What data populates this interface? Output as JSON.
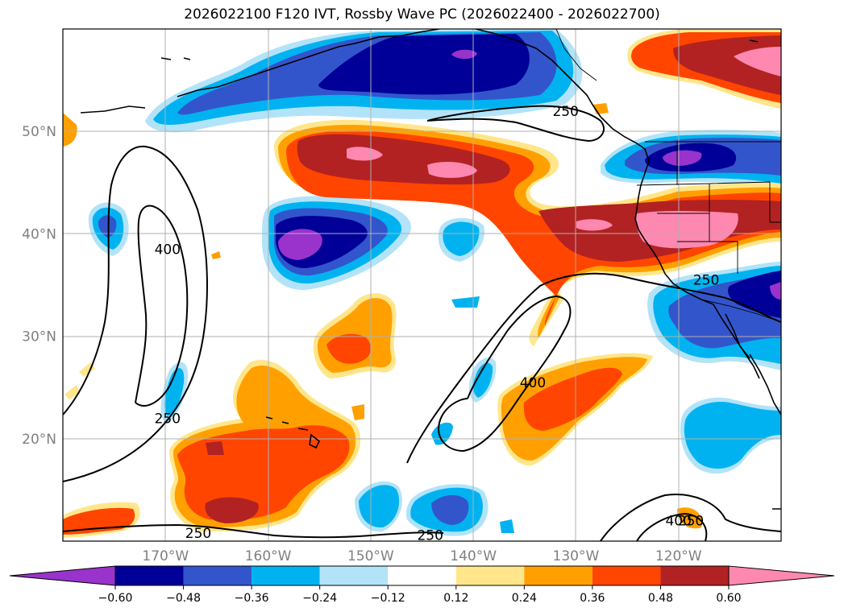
{
  "title": "2026022100 F120 IVT, Rossby Wave PC (2026022400 - 2026022700)",
  "map": {
    "projection": "cylindrical",
    "lon_range": [
      -180,
      -110
    ],
    "lat_range": [
      10,
      60
    ],
    "lon_ticks": [
      {
        "lon": -170,
        "label": "170°W"
      },
      {
        "lon": -160,
        "label": "160°W"
      },
      {
        "lon": -150,
        "label": "150°W"
      },
      {
        "lon": -140,
        "label": "140°W"
      },
      {
        "lon": -130,
        "label": "130°W"
      },
      {
        "lon": -120,
        "label": "120°W"
      }
    ],
    "lat_ticks": [
      {
        "lat": 20,
        "label": "20°N"
      },
      {
        "lat": 30,
        "label": "30°N"
      },
      {
        "lat": 40,
        "label": "40°N"
      },
      {
        "lat": 50,
        "label": "50°N"
      }
    ]
  },
  "contour_labels": [
    {
      "text": "250",
      "lon": -131.0,
      "lat": 52.0
    },
    {
      "text": "400",
      "lon": -169.8,
      "lat": 38.5
    },
    {
      "text": "250",
      "lon": -169.8,
      "lat": 22.0
    },
    {
      "text": "400",
      "lon": -134.2,
      "lat": 25.5
    },
    {
      "text": "250",
      "lon": -117.3,
      "lat": 35.5
    },
    {
      "text": "250",
      "lon": -118.8,
      "lat": 12.0
    },
    {
      "text": "400",
      "lon": -120.0,
      "lat": 12.0
    },
    {
      "text": "250",
      "lon": -166.8,
      "lat": 10.8
    },
    {
      "text": "250",
      "lon": -144.2,
      "lat": 10.6
    }
  ],
  "colorbar": {
    "colors": [
      "#9933cc",
      "#000099",
      "#3355cc",
      "#00b3f0",
      "#b3e3f8",
      "#ffffff",
      "#ffe68a",
      "#ffa000",
      "#ff4500",
      "#b22222",
      "#ff88b0",
      "#ff88b0"
    ],
    "tick_labels": [
      "−0.60",
      "−0.48",
      "−0.36",
      "−0.24",
      "−0.12",
      "0.12",
      "0.24",
      "0.36",
      "0.48",
      "0.60"
    ]
  }
}
